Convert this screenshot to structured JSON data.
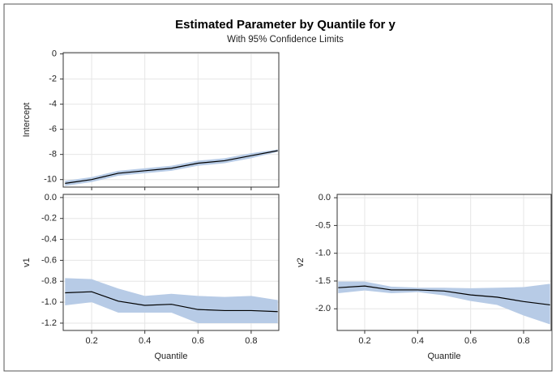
{
  "title": "Estimated Parameter by Quantile for y",
  "subtitle": "With 95% Confidence Limits",
  "chart_data": [
    {
      "type": "band-line",
      "y_label": "Intercept",
      "show_xtick_labels": false,
      "grid": true,
      "color": "#000000",
      "band_color": "#b7cbe6",
      "x": [
        0.1,
        0.2,
        0.3,
        0.4,
        0.5,
        0.6,
        0.7,
        0.8,
        0.9
      ],
      "values": [
        -10.3,
        -10.0,
        -9.5,
        -9.3,
        -9.1,
        -8.7,
        -8.5,
        -8.1,
        -7.7
      ],
      "lower": [
        -10.5,
        -10.2,
        -9.7,
        -9.5,
        -9.3,
        -8.9,
        -8.7,
        -8.3,
        -7.8
      ],
      "upper": [
        -10.1,
        -9.8,
        -9.3,
        -9.1,
        -8.9,
        -8.5,
        -8.3,
        -7.9,
        -7.6
      ],
      "xlim": [
        0.093,
        0.904
      ],
      "xticks": [
        0.2,
        0.4,
        0.6,
        0.8
      ],
      "ylim": [
        -10.6,
        0.1
      ],
      "yticks": [
        0,
        -2,
        -4,
        -6,
        -8,
        -10
      ]
    },
    {
      "type": "band-line",
      "y_label": "v1",
      "x_label": "Quantile",
      "show_xtick_labels": true,
      "grid": true,
      "color": "#000000",
      "band_color": "#b7cbe6",
      "x": [
        0.1,
        0.2,
        0.3,
        0.4,
        0.5,
        0.6,
        0.7,
        0.8,
        0.9
      ],
      "values": [
        -0.91,
        -0.9,
        -0.99,
        -1.03,
        -1.02,
        -1.07,
        -1.08,
        -1.08,
        -1.09
      ],
      "lower": [
        -1.03,
        -1.0,
        -1.1,
        -1.1,
        -1.1,
        -1.2,
        -1.2,
        -1.2,
        -1.2
      ],
      "upper": [
        -0.77,
        -0.78,
        -0.87,
        -0.94,
        -0.92,
        -0.94,
        -0.95,
        -0.94,
        -0.98
      ],
      "xlim": [
        0.093,
        0.904
      ],
      "xticks": [
        0.2,
        0.4,
        0.6,
        0.8
      ],
      "ylim": [
        -1.27,
        0.03
      ],
      "yticks": [
        {
          "value": 0,
          "label": "0.0"
        },
        -0.2,
        -0.4,
        -0.6,
        -0.8,
        {
          "value": -1,
          "label": "-1.0"
        },
        -1.2
      ]
    },
    {
      "type": "band-line",
      "y_label": "v2",
      "x_label": "Quantile",
      "show_xtick_labels": true,
      "grid": true,
      "color": "#000000",
      "band_color": "#b7cbe6",
      "x": [
        0.1,
        0.2,
        0.3,
        0.4,
        0.5,
        0.6,
        0.7,
        0.8,
        0.9
      ],
      "values": [
        -1.62,
        -1.59,
        -1.66,
        -1.66,
        -1.68,
        -1.75,
        -1.79,
        -1.87,
        -1.93
      ],
      "lower": [
        -1.72,
        -1.67,
        -1.72,
        -1.7,
        -1.76,
        -1.86,
        -1.93,
        -2.12,
        -2.28
      ],
      "upper": [
        -1.51,
        -1.51,
        -1.6,
        -1.62,
        -1.62,
        -1.63,
        -1.62,
        -1.61,
        -1.55
      ],
      "xlim": [
        0.096,
        0.904
      ],
      "xticks": [
        0.2,
        0.4,
        0.6,
        0.8
      ],
      "ylim": [
        -2.39,
        0.06
      ],
      "yticks": [
        {
          "value": 0,
          "label": "0.0"
        },
        -0.5,
        {
          "value": -1,
          "label": "-1.0"
        },
        -1.5,
        {
          "value": -2,
          "label": "-2.0"
        }
      ]
    }
  ]
}
